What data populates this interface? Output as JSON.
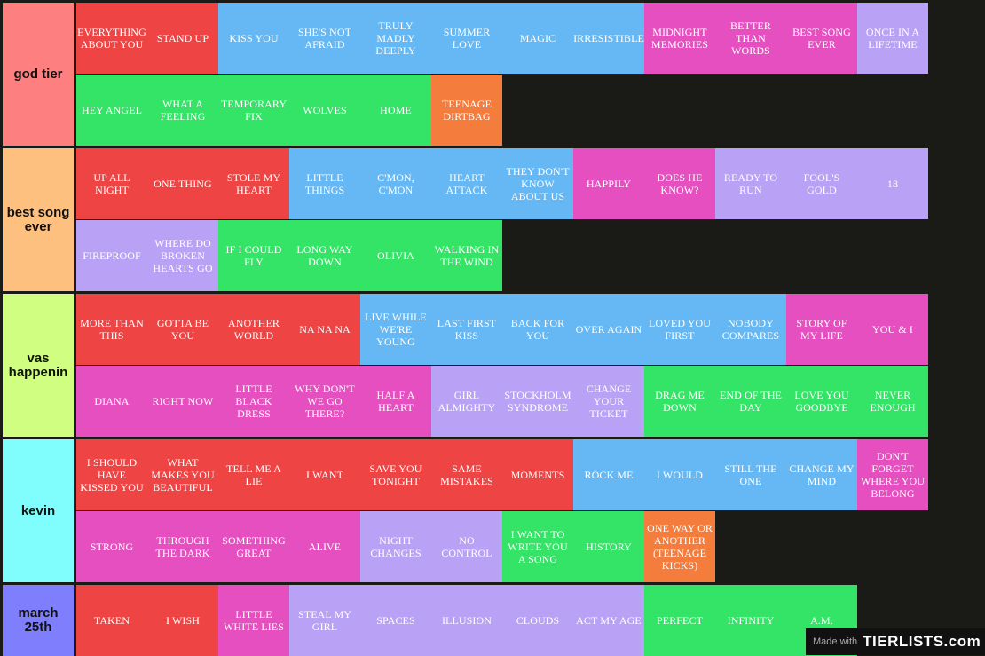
{
  "colors": {
    "red": "#ee4444",
    "blue": "#66b8f4",
    "pink": "#e64fc0",
    "purple": "#b9a2f5",
    "green": "#33e466",
    "orange": "#f47c3c",
    "background": "#1a1a17"
  },
  "tiers": [
    {
      "label": "god tier",
      "label_color": "#fd7f7f",
      "rows": 2,
      "items": [
        {
          "title": "EVERYTHING ABOUT YOU",
          "color": "red"
        },
        {
          "title": "STAND UP",
          "color": "red"
        },
        {
          "title": "KISS YOU",
          "color": "blue"
        },
        {
          "title": "SHE'S NOT AFRAID",
          "color": "blue"
        },
        {
          "title": "TRULY MADLY DEEPLY",
          "color": "blue"
        },
        {
          "title": "SUMMER LOVE",
          "color": "blue"
        },
        {
          "title": "MAGIC",
          "color": "blue"
        },
        {
          "title": "IRRESISTIBLE",
          "color": "blue"
        },
        {
          "title": "MIDNIGHT MEMORIES",
          "color": "pink"
        },
        {
          "title": "BETTER THAN WORDS",
          "color": "pink"
        },
        {
          "title": "BEST SONG EVER",
          "color": "pink"
        },
        {
          "title": "ONCE IN A LIFETIME",
          "color": "purple"
        },
        {
          "title": "HEY ANGEL",
          "color": "green"
        },
        {
          "title": "WHAT A FEELING",
          "color": "green"
        },
        {
          "title": "TEMPORARY FIX",
          "color": "green"
        },
        {
          "title": "WOLVES",
          "color": "green"
        },
        {
          "title": "HOME",
          "color": "green"
        },
        {
          "title": "TEENAGE DIRTBAG",
          "color": "orange"
        }
      ]
    },
    {
      "label": "best song ever",
      "label_color": "#fec07f",
      "rows": 2,
      "items": [
        {
          "title": "UP ALL NIGHT",
          "color": "red"
        },
        {
          "title": "ONE THING",
          "color": "red"
        },
        {
          "title": "STOLE MY HEART",
          "color": "red"
        },
        {
          "title": "LITTLE THINGS",
          "color": "blue"
        },
        {
          "title": "C'MON, C'MON",
          "color": "blue"
        },
        {
          "title": "HEART ATTACK",
          "color": "blue"
        },
        {
          "title": "THEY DON'T KNOW ABOUT US",
          "color": "blue"
        },
        {
          "title": "HAPPILY",
          "color": "pink"
        },
        {
          "title": "DOES HE KNOW?",
          "color": "pink"
        },
        {
          "title": "READY TO RUN",
          "color": "purple"
        },
        {
          "title": "FOOL'S GOLD",
          "color": "purple"
        },
        {
          "title": "18",
          "color": "purple"
        },
        {
          "title": "FIREPROOF",
          "color": "purple"
        },
        {
          "title": "WHERE DO BROKEN HEARTS GO",
          "color": "purple"
        },
        {
          "title": "IF I COULD FLY",
          "color": "green"
        },
        {
          "title": "LONG WAY DOWN",
          "color": "green"
        },
        {
          "title": "OLIVIA",
          "color": "green"
        },
        {
          "title": "WALKING IN THE WIND",
          "color": "green"
        }
      ]
    },
    {
      "label": "vas happenin",
      "label_color": "#cffe80",
      "rows": 2,
      "items": [
        {
          "title": "MORE THAN THIS",
          "color": "red"
        },
        {
          "title": "GOTTA BE YOU",
          "color": "red"
        },
        {
          "title": "ANOTHER WORLD",
          "color": "red"
        },
        {
          "title": "NA NA NA",
          "color": "red"
        },
        {
          "title": "LIVE WHILE WE'RE YOUNG",
          "color": "blue"
        },
        {
          "title": "LAST FIRST KISS",
          "color": "blue"
        },
        {
          "title": "BACK FOR YOU",
          "color": "blue"
        },
        {
          "title": "OVER AGAIN",
          "color": "blue"
        },
        {
          "title": "LOVED YOU FIRST",
          "color": "blue"
        },
        {
          "title": "NOBODY COMPARES",
          "color": "blue"
        },
        {
          "title": "STORY OF MY LIFE",
          "color": "pink"
        },
        {
          "title": "YOU & I",
          "color": "pink"
        },
        {
          "title": "DIANA",
          "color": "pink"
        },
        {
          "title": "RIGHT NOW",
          "color": "pink"
        },
        {
          "title": "LITTLE BLACK DRESS",
          "color": "pink"
        },
        {
          "title": "WHY DON'T WE GO THERE?",
          "color": "pink"
        },
        {
          "title": "HALF A HEART",
          "color": "pink"
        },
        {
          "title": "GIRL ALMIGHTY",
          "color": "purple"
        },
        {
          "title": "STOCKHOLM SYNDROME",
          "color": "purple"
        },
        {
          "title": "CHANGE YOUR TICKET",
          "color": "purple"
        },
        {
          "title": "DRAG ME DOWN",
          "color": "green"
        },
        {
          "title": "END OF THE DAY",
          "color": "green"
        },
        {
          "title": "LOVE YOU GOODBYE",
          "color": "green"
        },
        {
          "title": "NEVER ENOUGH",
          "color": "green"
        }
      ]
    },
    {
      "label": "kevin",
      "label_color": "#7ffefd",
      "rows": 2,
      "items": [
        {
          "title": "I SHOULD HAVE KISSED YOU",
          "color": "red"
        },
        {
          "title": "WHAT MAKES YOU BEAUTIFUL",
          "color": "red"
        },
        {
          "title": "TELL ME A LIE",
          "color": "red"
        },
        {
          "title": "I WANT",
          "color": "red"
        },
        {
          "title": "SAVE YOU TONIGHT",
          "color": "red"
        },
        {
          "title": "SAME MISTAKES",
          "color": "red"
        },
        {
          "title": "MOMENTS",
          "color": "red"
        },
        {
          "title": "ROCK ME",
          "color": "blue"
        },
        {
          "title": "I WOULD",
          "color": "blue"
        },
        {
          "title": "STILL THE ONE",
          "color": "blue"
        },
        {
          "title": "CHANGE MY MIND",
          "color": "blue"
        },
        {
          "title": "DON'T FORGET WHERE YOU BELONG",
          "color": "pink"
        },
        {
          "title": "STRONG",
          "color": "pink"
        },
        {
          "title": "THROUGH THE DARK",
          "color": "pink"
        },
        {
          "title": "SOMETHING GREAT",
          "color": "pink"
        },
        {
          "title": "ALIVE",
          "color": "pink"
        },
        {
          "title": "NIGHT CHANGES",
          "color": "purple"
        },
        {
          "title": "NO CONTROL",
          "color": "purple"
        },
        {
          "title": "I WANT TO WRITE YOU A SONG",
          "color": "green"
        },
        {
          "title": "HISTORY",
          "color": "green"
        },
        {
          "title": "ONE WAY OR ANOTHER (TEENAGE KICKS)",
          "color": "orange"
        }
      ]
    },
    {
      "label": "march 25th",
      "label_color": "#7f7ffe",
      "rows": 1,
      "items": [
        {
          "title": "TAKEN",
          "color": "red"
        },
        {
          "title": "I WISH",
          "color": "red"
        },
        {
          "title": "LITTLE WHITE LIES",
          "color": "pink"
        },
        {
          "title": "STEAL MY GIRL",
          "color": "purple"
        },
        {
          "title": "SPACES",
          "color": "purple"
        },
        {
          "title": "ILLUSION",
          "color": "purple"
        },
        {
          "title": "CLOUDS",
          "color": "purple"
        },
        {
          "title": "ACT MY AGE",
          "color": "purple"
        },
        {
          "title": "PERFECT",
          "color": "green"
        },
        {
          "title": "INFINITY",
          "color": "green"
        },
        {
          "title": "A.M.",
          "color": "green"
        }
      ]
    }
  ],
  "watermark": {
    "made_with": "Made with",
    "brand": "TIERLISTS.com"
  }
}
